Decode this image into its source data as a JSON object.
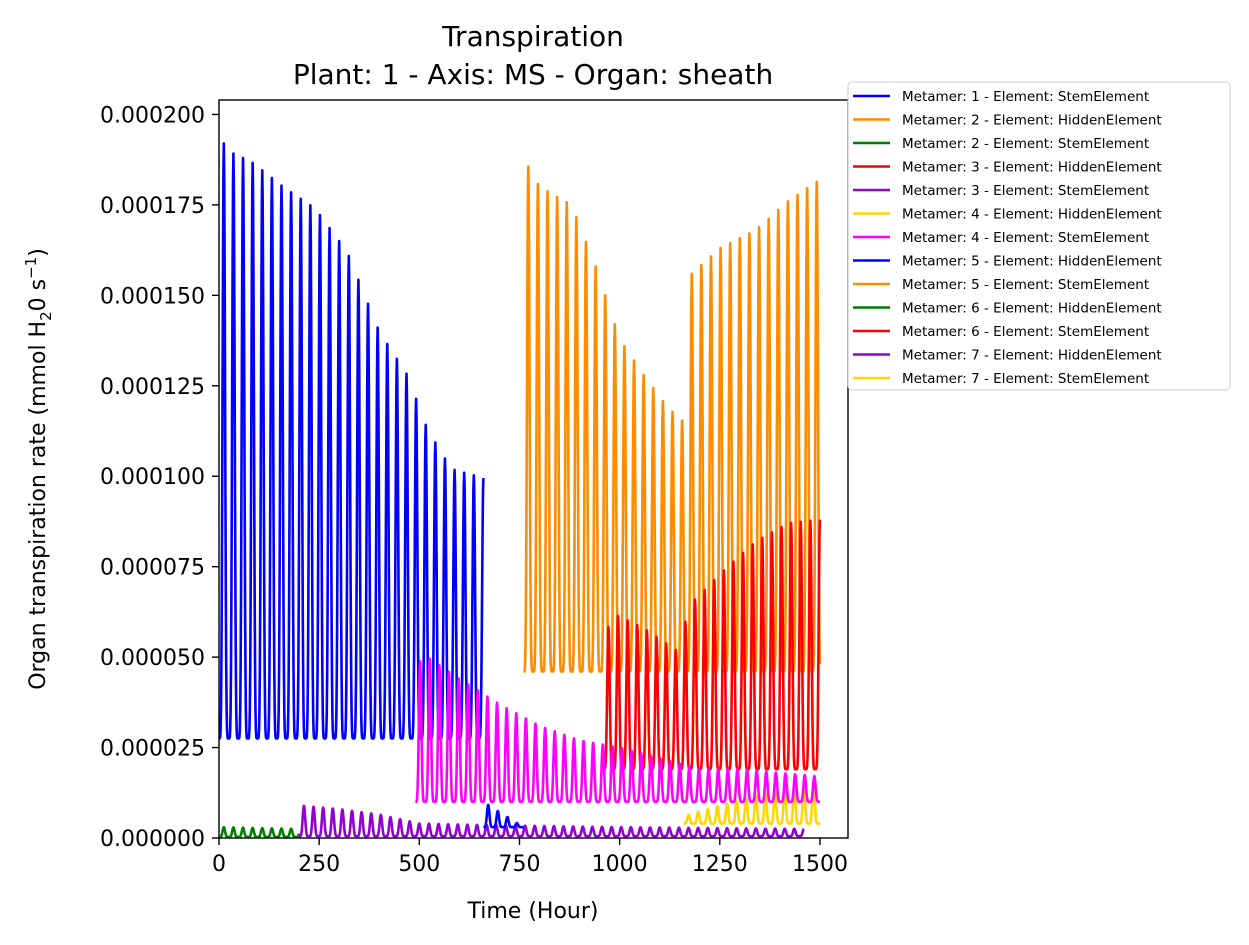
{
  "chart_data": {
    "type": "line",
    "title": "Transpiration",
    "subtitle": "Plant: 1 - Axis: MS - Organ: sheath",
    "xlabel": "Time (Hour)",
    "ylabel": {
      "prefix": "Organ transpiration rate (mmol H",
      "sub": "2",
      "mid": "0 s",
      "sup": "−1",
      "suffix": ")"
    },
    "xlim": [
      0,
      1570
    ],
    "ylim": [
      0,
      0.000204
    ],
    "xticks": [
      0,
      250,
      500,
      750,
      1000,
      1250,
      1500
    ],
    "xtick_labels": [
      "0",
      "250",
      "500",
      "750",
      "1000",
      "1250",
      "1500"
    ],
    "yticks": [
      0,
      2.5e-05,
      5e-05,
      7.5e-05,
      0.0001,
      0.000125,
      0.00015,
      0.000175,
      0.0002
    ],
    "ytick_labels": [
      "0.000000",
      "0.000025",
      "0.000050",
      "0.000075",
      "0.000100",
      "0.000125",
      "0.000150",
      "0.000175",
      "0.000200"
    ],
    "legend_position": "outside upper right",
    "period_hours": 24,
    "series": [
      {
        "name": "Metamer: 1 - Element: StemElement",
        "color": "#0000ff",
        "start": 0,
        "end": 660,
        "base": [
          [
            0,
            2.75e-05
          ],
          [
            660,
            2.75e-05
          ]
        ],
        "peak": [
          [
            0,
            0.000195
          ],
          [
            20,
            0.00019
          ],
          [
            80,
            0.000187
          ],
          [
            160,
            0.00018
          ],
          [
            240,
            0.000174
          ],
          [
            320,
            0.000162
          ],
          [
            400,
            0.00014
          ],
          [
            470,
            0.000128
          ],
          [
            520,
            0.000113
          ],
          [
            580,
            0.000102
          ],
          [
            660,
            9.95e-05
          ]
        ]
      },
      {
        "name": "Metamer: 2 - Element: HiddenElement",
        "color": "#ff8c00",
        "start": 760,
        "end": 1500,
        "base": [
          [
            760,
            4.6e-05
          ],
          [
            1500,
            4.6e-05
          ]
        ],
        "peak": [
          [
            760,
            0.000188
          ],
          [
            800,
            0.00018
          ],
          [
            880,
            0.000175
          ],
          [
            940,
            0.000158
          ],
          [
            1000,
            0.000138
          ],
          [
            1060,
            0.000128
          ],
          [
            1120,
            0.000119
          ],
          [
            1160,
            0.000115
          ],
          [
            1180,
            0.000156
          ],
          [
            1250,
            0.000163
          ],
          [
            1340,
            0.000168
          ],
          [
            1420,
            0.000176
          ],
          [
            1500,
            0.000182
          ]
        ]
      },
      {
        "name": "Metamer: 2 - Element: StemElement",
        "color": "#008000",
        "start": 0,
        "end": 200,
        "base": [
          [
            0,
            3e-07
          ],
          [
            200,
            3e-07
          ]
        ],
        "peak": [
          [
            0,
            3e-06
          ],
          [
            200,
            2.5e-06
          ]
        ]
      },
      {
        "name": "Metamer: 3 - Element: HiddenElement",
        "color": "#ff0000",
        "start": 960,
        "end": 1500,
        "base": [
          [
            960,
            1.9e-05
          ],
          [
            1500,
            1.9e-05
          ]
        ],
        "peak": [
          [
            960,
            5.5e-05
          ],
          [
            985,
            6.2e-05
          ],
          [
            1060,
            5.8e-05
          ],
          [
            1140,
            5.2e-05
          ],
          [
            1180,
            6.5e-05
          ],
          [
            1260,
            7.4e-05
          ],
          [
            1340,
            8.2e-05
          ],
          [
            1420,
            8.7e-05
          ],
          [
            1500,
            8.8e-05
          ]
        ]
      },
      {
        "name": "Metamer: 3 - Element: StemElement",
        "color": "#9400d3",
        "start": 200,
        "end": 1460,
        "base": [
          [
            200,
            5e-07
          ],
          [
            1460,
            5e-07
          ]
        ],
        "peak": [
          [
            200,
            9e-06
          ],
          [
            300,
            8e-06
          ],
          [
            400,
            6.5e-06
          ],
          [
            500,
            4e-06
          ],
          [
            700,
            3.5e-06
          ],
          [
            1000,
            3e-06
          ],
          [
            1460,
            2.5e-06
          ]
        ]
      },
      {
        "name": "Metamer: 4 - Element: HiddenElement",
        "color": "#ffd700",
        "start": 1160,
        "end": 1500,
        "base": [
          [
            1160,
            4e-06
          ],
          [
            1500,
            4e-06
          ]
        ],
        "peak": [
          [
            1160,
            6e-06
          ],
          [
            1250,
            9e-06
          ],
          [
            1350,
            1.2e-05
          ],
          [
            1450,
            1.4e-05
          ],
          [
            1500,
            1.6e-05
          ]
        ]
      },
      {
        "name": "Metamer: 4 - Element: StemElement",
        "color": "#ff00ff",
        "start": 490,
        "end": 1500,
        "base": [
          [
            490,
            1e-05
          ],
          [
            1500,
            1e-05
          ]
        ],
        "peak": [
          [
            490,
            4.8e-05
          ],
          [
            520,
            5e-05
          ],
          [
            600,
            4.4e-05
          ],
          [
            700,
            3.7e-05
          ],
          [
            800,
            3.1e-05
          ],
          [
            900,
            2.7e-05
          ],
          [
            1000,
            2.5e-05
          ],
          [
            1100,
            2.2e-05
          ],
          [
            1200,
            1.9e-05
          ],
          [
            1300,
            1.9e-05
          ],
          [
            1400,
            1.8e-05
          ],
          [
            1500,
            1.7e-05
          ]
        ]
      },
      {
        "name": "Metamer: 5 - Element: HiddenElement",
        "color": "#0000ff",
        "start": 660,
        "end": 760,
        "base": [
          [
            660,
            3e-06
          ],
          [
            760,
            3e-06
          ]
        ],
        "peak": [
          [
            660,
            1e-05
          ],
          [
            760,
            3e-06
          ]
        ]
      },
      {
        "name": "Metamer: 5 - Element: StemElement",
        "color": "#ff8c00",
        "start": 1500,
        "end": 1500,
        "base": [
          [
            1500,
            4.6e-05
          ]
        ],
        "peak": [
          [
            1500,
            4.6e-05
          ]
        ]
      },
      {
        "name": "Metamer: 6 - Element: HiddenElement",
        "color": "#008000",
        "start": 0,
        "end": 0,
        "base": [
          [
            0,
            0
          ]
        ],
        "peak": [
          [
            0,
            0
          ]
        ]
      },
      {
        "name": "Metamer: 6 - Element: StemElement",
        "color": "#ff0000",
        "start": 1500,
        "end": 1500,
        "base": [
          [
            1500,
            1.9e-05
          ]
        ],
        "peak": [
          [
            1500,
            1.9e-05
          ]
        ]
      },
      {
        "name": "Metamer: 7 - Element: HiddenElement",
        "color": "#9400d3",
        "start": 0,
        "end": 0,
        "base": [
          [
            0,
            0
          ]
        ],
        "peak": [
          [
            0,
            0
          ]
        ]
      },
      {
        "name": "Metamer: 7 - Element: StemElement",
        "color": "#ffd700",
        "start": 1500,
        "end": 1500,
        "base": [
          [
            1500,
            4e-06
          ]
        ],
        "peak": [
          [
            1500,
            4e-06
          ]
        ]
      }
    ]
  }
}
